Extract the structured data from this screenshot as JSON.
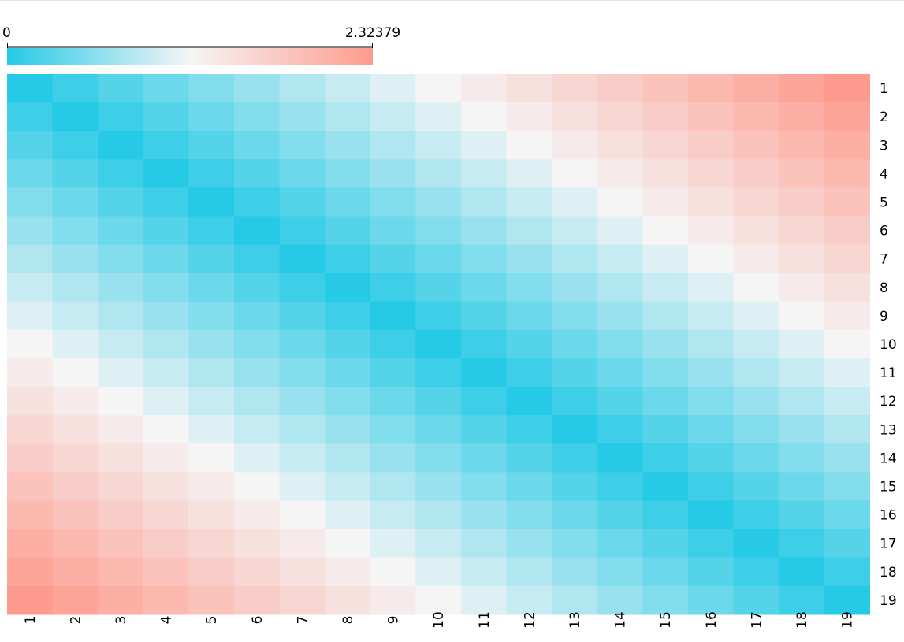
{
  "colors": {
    "low": "#26c9e6",
    "mid": "#f5f5f5",
    "high": "#ff9b8e"
  },
  "chart_data": {
    "type": "heatmap",
    "title": "",
    "xlabel": "",
    "ylabel": "",
    "x_labels": [
      "1",
      "2",
      "3",
      "4",
      "5",
      "6",
      "7",
      "8",
      "9",
      "10",
      "11",
      "12",
      "13",
      "14",
      "15",
      "16",
      "17",
      "18",
      "19"
    ],
    "y_labels": [
      "1",
      "2",
      "3",
      "4",
      "5",
      "6",
      "7",
      "8",
      "9",
      "10",
      "11",
      "12",
      "13",
      "14",
      "15",
      "16",
      "17",
      "18",
      "19"
    ],
    "colorbar": {
      "min_label": "0",
      "max_label": "2.32379",
      "min": 0,
      "max": 2.32379
    },
    "value_model": "distance matrix: cell value approximately equals |row - column| x 0.1291 (0 on the diagonal, 2.32379 at the corners)",
    "values": [
      [
        0.0,
        0.129,
        0.258,
        0.387,
        0.516,
        0.646,
        0.775,
        0.904,
        1.033,
        1.162,
        1.291,
        1.42,
        1.549,
        1.678,
        1.807,
        1.937,
        2.066,
        2.195,
        2.324
      ],
      [
        0.129,
        0.0,
        0.129,
        0.258,
        0.387,
        0.516,
        0.646,
        0.775,
        0.904,
        1.033,
        1.162,
        1.291,
        1.42,
        1.549,
        1.678,
        1.807,
        1.937,
        2.066,
        2.195
      ],
      [
        0.258,
        0.129,
        0.0,
        0.129,
        0.258,
        0.387,
        0.516,
        0.646,
        0.775,
        0.904,
        1.033,
        1.162,
        1.291,
        1.42,
        1.549,
        1.678,
        1.807,
        1.937,
        2.066
      ],
      [
        0.387,
        0.258,
        0.129,
        0.0,
        0.129,
        0.258,
        0.387,
        0.516,
        0.646,
        0.775,
        0.904,
        1.033,
        1.162,
        1.291,
        1.42,
        1.549,
        1.678,
        1.807,
        1.937
      ],
      [
        0.516,
        0.387,
        0.258,
        0.129,
        0.0,
        0.129,
        0.258,
        0.387,
        0.516,
        0.646,
        0.775,
        0.904,
        1.033,
        1.162,
        1.291,
        1.42,
        1.549,
        1.678,
        1.807
      ],
      [
        0.646,
        0.516,
        0.387,
        0.258,
        0.129,
        0.0,
        0.129,
        0.258,
        0.387,
        0.516,
        0.646,
        0.775,
        0.904,
        1.033,
        1.162,
        1.291,
        1.42,
        1.549,
        1.678
      ],
      [
        0.775,
        0.646,
        0.516,
        0.387,
        0.258,
        0.129,
        0.0,
        0.129,
        0.258,
        0.387,
        0.516,
        0.646,
        0.775,
        0.904,
        1.033,
        1.162,
        1.291,
        1.42,
        1.549
      ],
      [
        0.904,
        0.775,
        0.646,
        0.516,
        0.387,
        0.258,
        0.129,
        0.0,
        0.129,
        0.258,
        0.387,
        0.516,
        0.646,
        0.775,
        0.904,
        1.033,
        1.162,
        1.291,
        1.42
      ],
      [
        1.033,
        0.904,
        0.775,
        0.646,
        0.516,
        0.387,
        0.258,
        0.129,
        0.0,
        0.129,
        0.258,
        0.387,
        0.516,
        0.646,
        0.775,
        0.904,
        1.033,
        1.162,
        1.291
      ],
      [
        1.162,
        1.033,
        0.904,
        0.775,
        0.646,
        0.516,
        0.387,
        0.258,
        0.129,
        0.0,
        0.129,
        0.258,
        0.387,
        0.516,
        0.646,
        0.775,
        0.904,
        1.033,
        1.162
      ],
      [
        1.291,
        1.162,
        1.033,
        0.904,
        0.775,
        0.646,
        0.516,
        0.387,
        0.258,
        0.129,
        0.0,
        0.129,
        0.258,
        0.387,
        0.516,
        0.646,
        0.775,
        0.904,
        1.033
      ],
      [
        1.42,
        1.291,
        1.162,
        1.033,
        0.904,
        0.775,
        0.646,
        0.516,
        0.387,
        0.258,
        0.129,
        0.0,
        0.129,
        0.258,
        0.387,
        0.516,
        0.646,
        0.775,
        0.904
      ],
      [
        1.549,
        1.42,
        1.291,
        1.162,
        1.033,
        0.904,
        0.775,
        0.646,
        0.516,
        0.387,
        0.258,
        0.129,
        0.0,
        0.129,
        0.258,
        0.387,
        0.516,
        0.646,
        0.775
      ],
      [
        1.678,
        1.549,
        1.42,
        1.291,
        1.162,
        1.033,
        0.904,
        0.775,
        0.646,
        0.516,
        0.387,
        0.258,
        0.129,
        0.0,
        0.129,
        0.258,
        0.387,
        0.516,
        0.646
      ],
      [
        1.807,
        1.678,
        1.549,
        1.42,
        1.291,
        1.162,
        1.033,
        0.904,
        0.775,
        0.646,
        0.516,
        0.387,
        0.258,
        0.129,
        0.0,
        0.129,
        0.258,
        0.387,
        0.516
      ],
      [
        1.937,
        1.807,
        1.678,
        1.549,
        1.42,
        1.291,
        1.162,
        1.033,
        0.904,
        0.775,
        0.646,
        0.516,
        0.387,
        0.258,
        0.129,
        0.0,
        0.129,
        0.258,
        0.387
      ],
      [
        2.066,
        1.937,
        1.807,
        1.678,
        1.549,
        1.42,
        1.291,
        1.162,
        1.033,
        0.904,
        0.775,
        0.646,
        0.516,
        0.387,
        0.258,
        0.129,
        0.0,
        0.129,
        0.258
      ],
      [
        2.195,
        2.066,
        1.937,
        1.807,
        1.678,
        1.549,
        1.42,
        1.291,
        1.162,
        1.033,
        0.904,
        0.775,
        0.646,
        0.516,
        0.387,
        0.258,
        0.129,
        0.0,
        0.129
      ],
      [
        2.324,
        2.195,
        2.066,
        1.937,
        1.807,
        1.678,
        1.549,
        1.42,
        1.291,
        1.162,
        1.033,
        0.904,
        0.775,
        0.646,
        0.516,
        0.387,
        0.258,
        0.129,
        0.0
      ]
    ]
  }
}
